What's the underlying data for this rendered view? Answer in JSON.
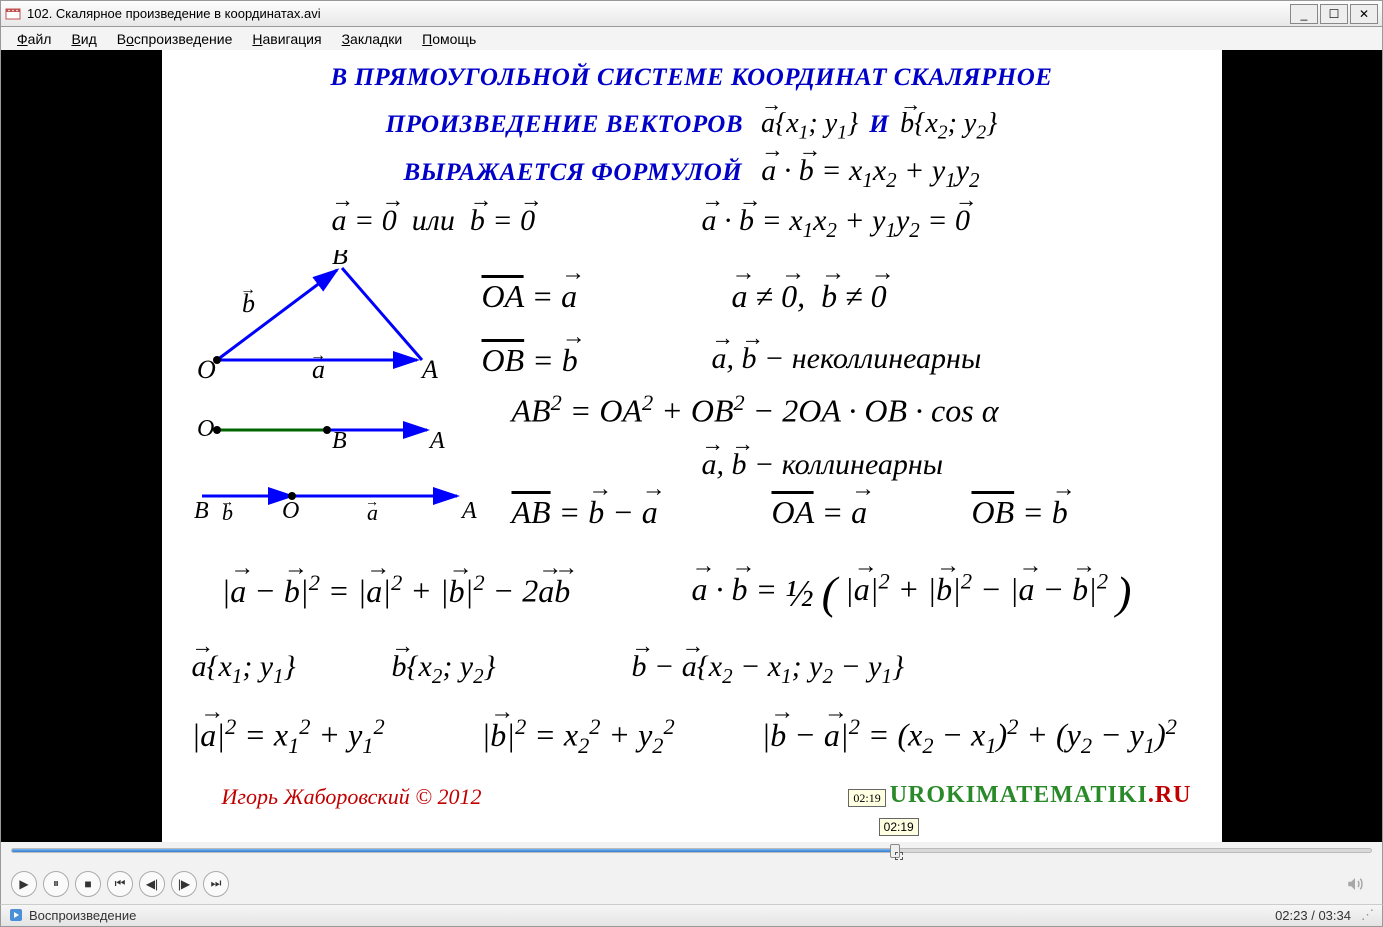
{
  "window": {
    "title": "102. Скалярное произведение в координатах.avi",
    "min_label": "_",
    "max_label": "☐",
    "close_label": "✕"
  },
  "menu": {
    "items": [
      "Файл",
      "Вид",
      "Воспроизведение",
      "Навигация",
      "Закладки",
      "Помощь"
    ]
  },
  "slide": {
    "heading_line1": "В ПРЯМОУГОЛЬНОЙ СИСТЕМЕ КООРДИНАТ СКАЛЯРНОЕ",
    "heading_line2_a": "ПРОИЗВЕДЕНИЕ ВЕКТОРОВ",
    "heading_line2_b": "И",
    "heading_line3": "ВЫРАЖАЕТСЯ ФОРМУЛОЙ",
    "vec_a_coords": "a{x₁; y₁}",
    "vec_b_coords": "b{x₂; y₂}",
    "formula_main": "a · b = x₁x₂ + y₁y₂",
    "case_zero": "a = 0  или  b = 0",
    "case_zero_result": "a · b = x₁x₂ + y₁y₂ = 0",
    "oa_eq": "OA = a",
    "ob_eq": "OB = b",
    "nonzero": "a ≠ 0,  b ≠ 0",
    "noncollinear": "a, b − неколлинеарны",
    "cosine_law": "AB² = OA² + OB² − 2OA · OB · cos α",
    "collinear": "a, b − коллинеарны",
    "ab_eq": "AB = b − a",
    "oa_eq2": "OA = a",
    "ob_eq2": "OB = b",
    "sq_diff": "|a − b|² = |a|² + |b|² − 2ab",
    "dot_half": "a · b = ½ ( |a|² + |b|² − |a − b|² )",
    "a_coords2": "a{x₁; y₁}",
    "b_coords2": "b{x₂; y₂}",
    "ba_coords": "b − a{x₂ − x₁; y₂ − y₁}",
    "a_sq": "|a|² = x₁² + y₁²",
    "b_sq": "|b|² = x₂² + y₂²",
    "ba_sq": "|b − a|² = (x₂ − x₁)² + (y₂ − y₁)²",
    "author": "Игорь Жаборовский © 2012",
    "url_part1": "UROKIMATEMATIKI",
    "url_part2": ".RU",
    "diagram": {
      "labels": {
        "O": "O",
        "A": "A",
        "B": "B",
        "a": "a",
        "b": "b"
      },
      "color": "#0000ff",
      "stroke_width": 3
    }
  },
  "playback": {
    "tooltip": "02:19",
    "progress_pct": 65,
    "current": "02:23",
    "total": "03:34",
    "time_sep": " / "
  },
  "status": {
    "label": "Воспроизведение"
  }
}
